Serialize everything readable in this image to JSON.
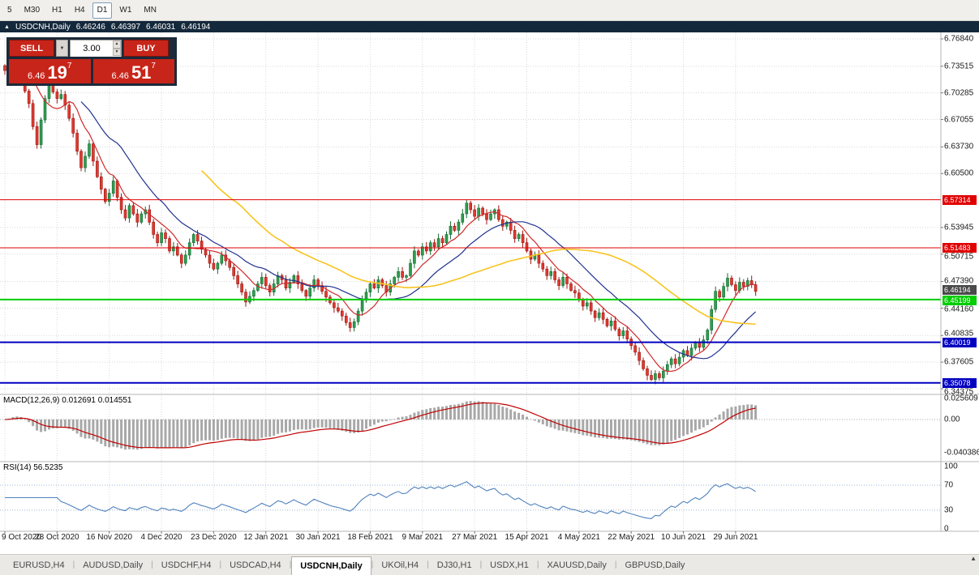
{
  "icons": {
    "collapse": "▲",
    "dropdown": "▼",
    "spin_up": "▲",
    "spin_down": "▼",
    "scroll_up": "▲"
  },
  "colors": {
    "up": "#2f9e4f",
    "up_border": "#156a33",
    "down": "#e03a2f",
    "down_border": "#9c1410",
    "macd_hist": "#a8a8a8",
    "macd_signal": "#c00000",
    "rsi": "#4f81bd",
    "tag_current": "#4a4a4a"
  },
  "toolbar": {
    "timeframes": [
      {
        "label": "5"
      },
      {
        "label": "M30"
      },
      {
        "label": "H1"
      },
      {
        "label": "H4"
      },
      {
        "label": "D1",
        "active": true
      },
      {
        "label": "W1"
      },
      {
        "label": "MN"
      }
    ]
  },
  "chart_header": {
    "symbol": "USDCNH,Daily",
    "open": "6.46246",
    "high": "6.46397",
    "low": "6.46031",
    "close": "6.46194"
  },
  "trade_panel": {
    "sell_label": "SELL",
    "buy_label": "BUY",
    "volume": "3.00",
    "sell_quote": {
      "small": "6.46",
      "big": "19",
      "sup": "7"
    },
    "buy_quote": {
      "small": "6.46",
      "big": "51",
      "sup": "7"
    }
  },
  "macd_panel": {
    "title": "MACD(12,26,9) 0.012691 0.014551",
    "axis_labels": [
      {
        "text": "0.025609",
        "value": 0.025609
      },
      {
        "text": "0.00",
        "value": 0
      },
      {
        "text": "-0.040386",
        "value": -0.040386
      }
    ]
  },
  "rsi_panel": {
    "title": "RSI(14) 56.5235",
    "axis_labels": [
      {
        "text": "100",
        "value": 100
      },
      {
        "text": "70",
        "value": 70
      },
      {
        "text": "30",
        "value": 30
      },
      {
        "text": "0",
        "value": 0
      }
    ],
    "levels": [
      30,
      70
    ]
  },
  "tabs": [
    {
      "label": "EURUSD,H4"
    },
    {
      "label": "AUDUSD,Daily"
    },
    {
      "label": "USDCHF,H4"
    },
    {
      "label": "USDCAD,H4"
    },
    {
      "label": "USDCNH,Daily",
      "active": true
    },
    {
      "label": "UKOil,H4"
    },
    {
      "label": "DJ30,H1"
    },
    {
      "label": "USDX,H1"
    },
    {
      "label": "XAUUSD,Daily"
    },
    {
      "label": "GBPUSD,Daily"
    }
  ],
  "chart_data": {
    "type": "candlestick",
    "symbol": "USDCNH",
    "timeframe": "Daily",
    "ohlc_current": {
      "open": 6.46246,
      "high": 6.46397,
      "low": 6.46031,
      "close": 6.46194
    },
    "price_axis_labels": [
      "6.76840",
      "6.73515",
      "6.70285",
      "6.67055",
      "6.63730",
      "6.60500",
      "6.53945",
      "6.50715",
      "6.47390",
      "6.44160",
      "6.40835",
      "6.37605",
      "6.34375"
    ],
    "date_labels": [
      "9 Oct 2020",
      "28 Oct 2020",
      "16 Nov 2020",
      "4 Dec 2020",
      "23 Dec 2020",
      "12 Jan 2021",
      "30 Jan 2021",
      "18 Feb 2021",
      "9 Mar 2021",
      "27 Mar 2021",
      "15 Apr 2021",
      "4 May 2021",
      "22 May 2021",
      "10 Jun 2021",
      "29 Jun 2021"
    ],
    "bars_per_label": 13,
    "closes": [
      6.73,
      6.745,
      6.756,
      6.748,
      6.732,
      6.705,
      6.69,
      6.662,
      6.64,
      6.67,
      6.696,
      6.712,
      6.704,
      6.696,
      6.701,
      6.688,
      6.672,
      6.654,
      6.632,
      6.612,
      6.626,
      6.641,
      6.62,
      6.601,
      6.586,
      6.571,
      6.581,
      6.596,
      6.576,
      6.561,
      6.551,
      6.566,
      6.556,
      6.546,
      6.556,
      6.561,
      6.546,
      6.531,
      6.521,
      6.533,
      6.526,
      6.511,
      6.516,
      6.506,
      6.496,
      6.506,
      6.521,
      6.531,
      6.523,
      6.513,
      6.506,
      6.496,
      6.489,
      6.496,
      6.506,
      6.499,
      6.491,
      6.481,
      6.471,
      6.461,
      6.449,
      6.456,
      6.463,
      6.471,
      6.479,
      6.469,
      6.461,
      6.471,
      6.481,
      6.476,
      6.466,
      6.473,
      6.481,
      6.471,
      6.463,
      6.456,
      6.466,
      6.476,
      6.469,
      6.462,
      6.455,
      6.448,
      6.442,
      6.438,
      6.432,
      6.424,
      6.418,
      6.425,
      6.438,
      6.451,
      6.461,
      6.471,
      6.466,
      6.476,
      6.469,
      6.461,
      6.471,
      6.479,
      6.486,
      6.479,
      6.481,
      6.496,
      6.511,
      6.506,
      6.516,
      6.511,
      6.521,
      6.516,
      6.526,
      6.521,
      6.531,
      6.541,
      6.536,
      6.546,
      6.556,
      6.569,
      6.561,
      6.553,
      6.563,
      6.556,
      6.549,
      6.556,
      6.561,
      6.549,
      6.541,
      6.546,
      6.536,
      6.526,
      6.531,
      6.521,
      6.511,
      6.501,
      6.506,
      6.496,
      6.489,
      6.481,
      6.486,
      6.476,
      6.469,
      6.479,
      6.471,
      6.463,
      6.46,
      6.452,
      6.444,
      6.448,
      6.438,
      6.43,
      6.436,
      6.428,
      6.42,
      6.426,
      6.416,
      6.408,
      6.414,
      6.404,
      6.396,
      6.388,
      6.378,
      6.368,
      6.36,
      6.355,
      6.362,
      6.357,
      6.365,
      6.373,
      6.38,
      6.374,
      6.382,
      6.39,
      6.384,
      6.393,
      6.4,
      6.394,
      6.403,
      6.415,
      6.44,
      6.462,
      6.455,
      6.468,
      6.478,
      6.47,
      6.463,
      6.473,
      6.468,
      6.475,
      6.47,
      6.46194
    ],
    "hlines": [
      {
        "price": 6.57314,
        "label": "6.57314",
        "color": "#e00000",
        "width": 1
      },
      {
        "price": 6.51483,
        "label": "6.51483",
        "color": "#e00000",
        "width": 1
      },
      {
        "price": 6.45199,
        "label": "6.45199",
        "color": "#00cc00",
        "width": 2
      },
      {
        "price": 6.40019,
        "label": "6.40019",
        "color": "#0000c0",
        "width": 2
      },
      {
        "price": 6.35078,
        "label": "6.35078",
        "color": "#0000c0",
        "width": 2
      }
    ],
    "current_price": {
      "value": 6.46194,
      "label": "6.46194"
    },
    "moving_averages": [
      {
        "period": 8,
        "color": "#d02a2a"
      },
      {
        "period": 20,
        "color": "#20318f"
      },
      {
        "period": 50,
        "color": "#f7c41f"
      }
    ],
    "indicators": {
      "macd": {
        "fast": 12,
        "slow": 26,
        "signal": 9,
        "value": "0.012691",
        "signal_value": "0.014551",
        "axis": [
          0.025609,
          0,
          -0.040386
        ]
      },
      "rsi": {
        "period": 14,
        "value": "56.5235",
        "axis": [
          100,
          70,
          30,
          0
        ],
        "levels": [
          30,
          70
        ]
      }
    }
  }
}
